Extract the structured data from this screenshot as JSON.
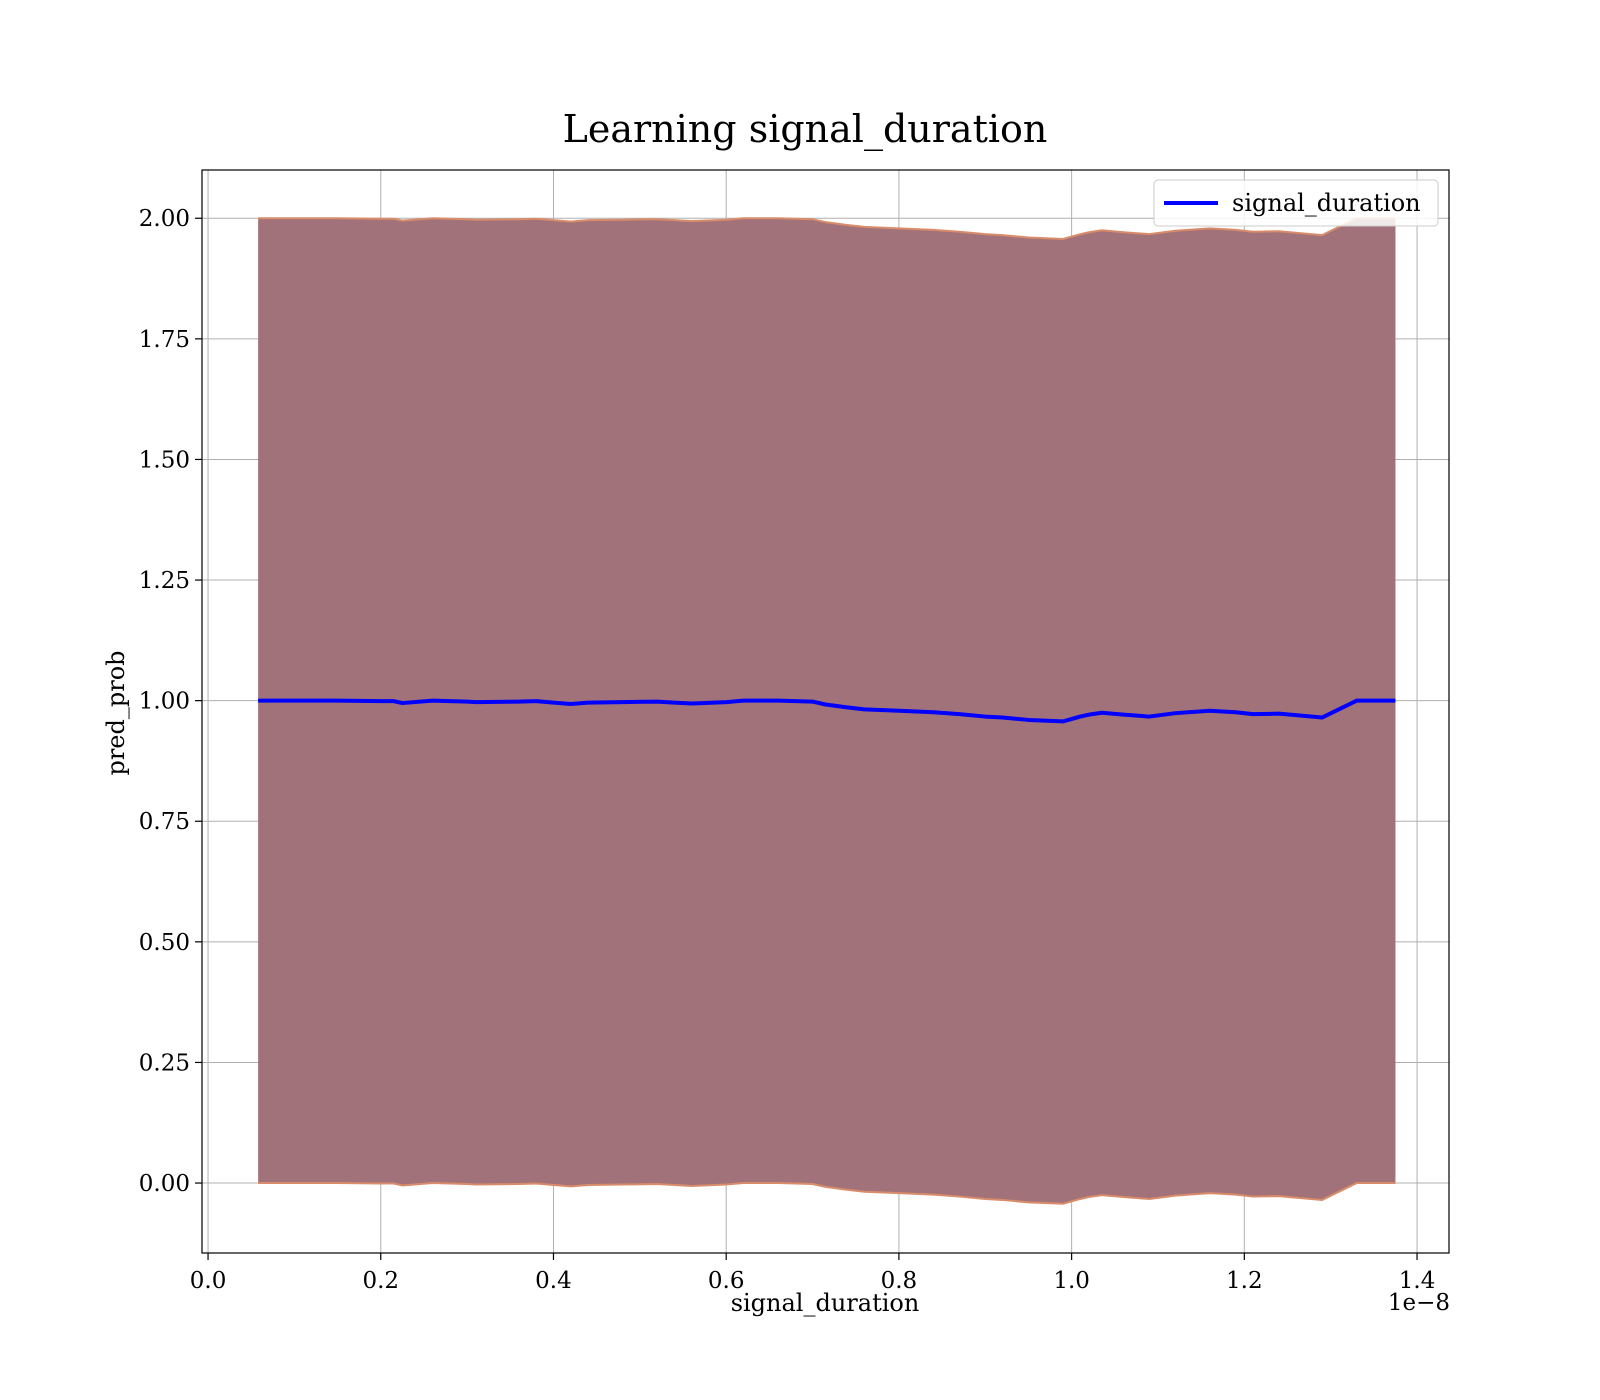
{
  "chart_data": {
    "type": "line",
    "title": "Learning signal_duration",
    "xlabel": "signal_duration",
    "ylabel": "pred_prob",
    "x_offset_text": "1e−8",
    "xlim": [
      -0.007,
      1.437
    ],
    "ylim": [
      -0.145,
      2.1
    ],
    "grid": true,
    "legend_position": "top-right",
    "x_ticks": [
      0.0,
      0.2,
      0.4,
      0.6,
      0.8,
      1.0,
      1.2,
      1.4
    ],
    "x_tick_labels": [
      "0.0",
      "0.2",
      "0.4",
      "0.6",
      "0.8",
      "1.0",
      "1.2",
      "1.4"
    ],
    "y_ticks": [
      0.0,
      0.25,
      0.5,
      0.75,
      1.0,
      1.25,
      1.5,
      1.75,
      2.0
    ],
    "y_tick_labels": [
      "0.00",
      "0.25",
      "0.50",
      "0.75",
      "1.00",
      "1.25",
      "1.50",
      "1.75",
      "2.00"
    ],
    "colors": {
      "line": "#0000ff",
      "band_fill": "#a2727a",
      "band_edge": "#d98c6a",
      "grid": "#b0b0b0"
    },
    "series": [
      {
        "name": "signal_duration",
        "x": [
          0.058,
          0.1,
          0.15,
          0.2,
          0.215,
          0.225,
          0.26,
          0.3,
          0.31,
          0.36,
          0.38,
          0.4,
          0.42,
          0.44,
          0.48,
          0.52,
          0.54,
          0.56,
          0.6,
          0.62,
          0.66,
          0.7,
          0.715,
          0.74,
          0.76,
          0.8,
          0.84,
          0.87,
          0.9,
          0.92,
          0.95,
          0.99,
          1.01,
          1.02,
          1.035,
          1.06,
          1.09,
          1.12,
          1.16,
          1.19,
          1.21,
          1.24,
          1.29,
          1.33,
          1.375
        ],
        "y": [
          1.0,
          1.0,
          1.0,
          0.999,
          0.999,
          0.995,
          1.0,
          0.998,
          0.997,
          0.998,
          0.999,
          0.996,
          0.993,
          0.996,
          0.997,
          0.998,
          0.996,
          0.994,
          0.997,
          1.0,
          1.0,
          0.998,
          0.992,
          0.986,
          0.982,
          0.979,
          0.976,
          0.972,
          0.967,
          0.965,
          0.96,
          0.957,
          0.967,
          0.971,
          0.975,
          0.971,
          0.967,
          0.974,
          0.979,
          0.976,
          0.972,
          0.973,
          0.965,
          1.0,
          1.0
        ],
        "band_upper": [
          2.0,
          2.0,
          2.0,
          1.999,
          1.999,
          1.995,
          2.0,
          1.998,
          1.997,
          1.998,
          1.999,
          1.996,
          1.993,
          1.996,
          1.997,
          1.998,
          1.996,
          1.994,
          1.997,
          2.0,
          2.0,
          1.998,
          1.992,
          1.986,
          1.982,
          1.979,
          1.976,
          1.972,
          1.967,
          1.965,
          1.96,
          1.957,
          1.967,
          1.971,
          1.975,
          1.971,
          1.967,
          1.974,
          1.979,
          1.976,
          1.972,
          1.973,
          1.965,
          2.0,
          2.0
        ],
        "band_lower": [
          0.0,
          0.0,
          0.0,
          -0.001,
          -0.001,
          -0.005,
          0.0,
          -0.002,
          -0.003,
          -0.002,
          -0.001,
          -0.004,
          -0.007,
          -0.004,
          -0.003,
          -0.002,
          -0.004,
          -0.006,
          -0.003,
          0.0,
          0.0,
          -0.002,
          -0.008,
          -0.014,
          -0.018,
          -0.021,
          -0.024,
          -0.028,
          -0.033,
          -0.035,
          -0.04,
          -0.043,
          -0.033,
          -0.029,
          -0.025,
          -0.029,
          -0.033,
          -0.026,
          -0.021,
          -0.024,
          -0.028,
          -0.027,
          -0.035,
          0.0,
          0.0
        ]
      }
    ]
  }
}
